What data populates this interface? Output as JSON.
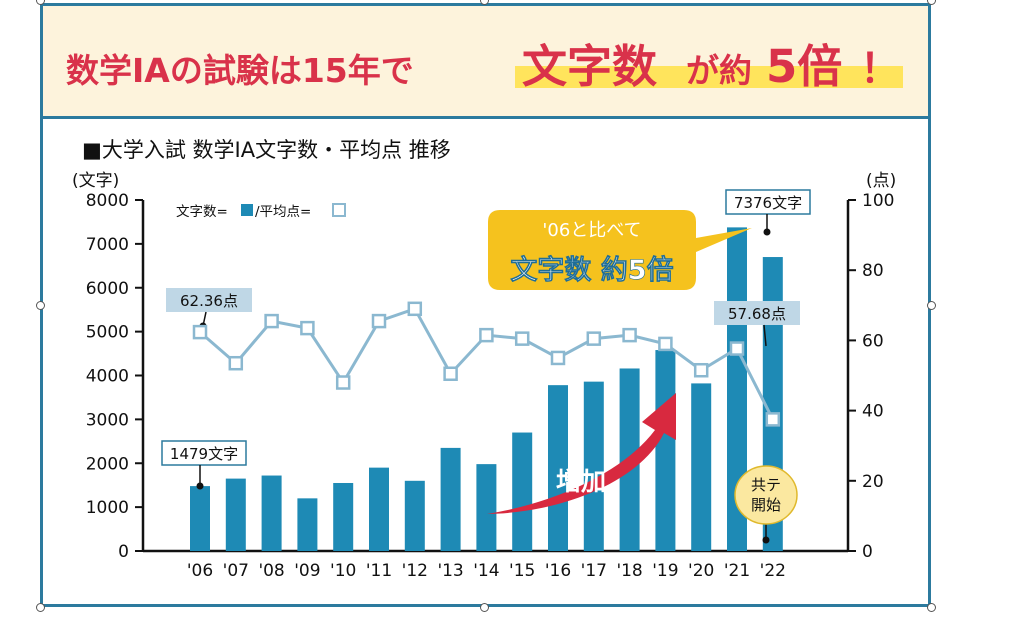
{
  "headline": {
    "part1": "数学ⅠAの試験は15年で",
    "highlight": "文字数",
    "part2": "が約",
    "big": "5倍",
    "exclaim": "！"
  },
  "colors": {
    "frame": "#2c7a9e",
    "bar": "#1e8ab5",
    "line": "#8bb8d0",
    "marker_fill": "#ffffff",
    "headline_red": "#d9324a",
    "highlight_yellow": "#ffe45c",
    "callout_yellow": "#f5c21e",
    "arrow_red": "#d8293f",
    "label_box": "#bfd7e6"
  },
  "chart_title": "■大学入試 数学ⅠA文字数・平均点 推移",
  "legend": {
    "chars_label": "文字数=",
    "separator": "/平均点="
  },
  "callout": {
    "line1": "'06と比べて",
    "line2": "文字数 約5倍"
  },
  "arrow_label": "増加",
  "kyotsu_label_line1": "共テ",
  "kyotsu_label_line2": "開始",
  "annotations": {
    "chars_2006": "1479文字",
    "chars_2021": "7376文字",
    "avg_2006": "62.36点",
    "avg_2021": "57.68点"
  },
  "chart_data": {
    "type": "bar",
    "title": "大学入試 数学ⅠA文字数・平均点 推移",
    "categories": [
      "'06",
      "'07",
      "'08",
      "'09",
      "'10",
      "'11",
      "'12",
      "'13",
      "'14",
      "'15",
      "'16",
      "'17",
      "'18",
      "'19",
      "'20",
      "'21",
      "'22"
    ],
    "series": [
      {
        "name": "文字数",
        "type": "bar",
        "axis": "left",
        "values": [
          1479,
          1650,
          1720,
          1200,
          1550,
          1900,
          1600,
          2350,
          1980,
          2700,
          3780,
          3860,
          4160,
          4580,
          3820,
          7376,
          6700
        ]
      },
      {
        "name": "平均点",
        "type": "line",
        "axis": "right",
        "values": [
          62.36,
          53.5,
          65.5,
          63.5,
          48,
          65.5,
          69,
          50.5,
          61.5,
          60.5,
          55,
          60.5,
          61.5,
          59,
          51.5,
          57.68,
          37.5
        ]
      }
    ],
    "ylabel_left": "(文字)",
    "ylabel_right": "(点)",
    "ylim_left": [
      0,
      8000
    ],
    "ylim_right": [
      0,
      100
    ],
    "yticks_left": [
      "0",
      "1000",
      "2000",
      "3000",
      "4000",
      "5000",
      "6000",
      "7000",
      "8000"
    ],
    "yticks_right": [
      "0",
      "20",
      "40",
      "60",
      "80",
      "100"
    ]
  }
}
